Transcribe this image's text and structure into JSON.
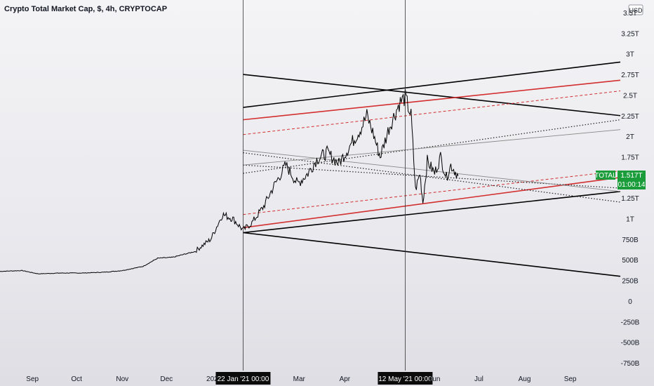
{
  "header": {
    "title": "Crypto Total Market Cap, $, 4h, CRYPTOCAP",
    "currency_button": "USD"
  },
  "axes": {
    "y_ticks": [
      "3.5T",
      "3.25T",
      "3T",
      "2.75T",
      "2.5T",
      "2.25T",
      "2T",
      "1.75T",
      "1.25T",
      "1T",
      "750B",
      "500B",
      "250B",
      "0",
      "-250B",
      "-500B",
      "-750B"
    ],
    "x_ticks": [
      "Sep",
      "Oct",
      "Nov",
      "Dec",
      "202",
      "Mar",
      "Apr",
      "Jun",
      "Jul",
      "Aug",
      "Sep"
    ],
    "vline_labels": [
      "22 Jan '21  00:00",
      "12 May '21  00:00"
    ]
  },
  "price_tag": {
    "symbol": "TOTAL",
    "value": "1.517T",
    "countdown": "01:00:14"
  },
  "colors": {
    "price": "#000000",
    "channel": "#000000",
    "red": "#d32f2f",
    "label_green": "#1b9c3b"
  },
  "chart_data": {
    "type": "line",
    "title": "Crypto Total Market Cap, $, 4h, CRYPTOCAP",
    "xlabel": "",
    "ylabel": "",
    "ylim": [
      -750000000000,
      3500000000000
    ],
    "x_range": [
      "2020-08-10",
      "2021-10-05"
    ],
    "series": [
      {
        "values": [
          [
            "2020-08-10",
            360000000000.0
          ],
          [
            "2020-08-25",
            370000000000.0
          ],
          [
            "2020-09-05",
            330000000000.0
          ],
          [
            "2020-09-20",
            340000000000.0
          ],
          [
            "2020-10-05",
            340000000000.0
          ],
          [
            "2020-10-20",
            350000000000.0
          ],
          [
            "2020-11-01",
            370000000000.0
          ],
          [
            "2020-11-15",
            420000000000.0
          ],
          [
            "2020-11-25",
            520000000000.0
          ],
          [
            "2020-12-05",
            530000000000.0
          ],
          [
            "2020-12-20",
            600000000000.0
          ],
          [
            "2020-12-31",
            750000000000.0
          ],
          [
            "2021-01-08",
            1050000000000.0
          ],
          [
            "2021-01-15",
            1000000000000.0
          ],
          [
            "2021-01-22",
            860000000000.0
          ],
          [
            "2021-01-28",
            950000000000.0
          ],
          [
            "2021-02-05",
            1150000000000.0
          ],
          [
            "2021-02-12",
            1400000000000.0
          ],
          [
            "2021-02-20",
            1650000000000.0
          ],
          [
            "2021-02-28",
            1420000000000.0
          ],
          [
            "2021-03-07",
            1550000000000.0
          ],
          [
            "2021-03-13",
            1720000000000.0
          ],
          [
            "2021-03-20",
            1800000000000.0
          ],
          [
            "2021-03-28",
            1670000000000.0
          ],
          [
            "2021-04-05",
            1900000000000.0
          ],
          [
            "2021-04-12",
            2100000000000.0
          ],
          [
            "2021-04-16",
            2250000000000.0
          ],
          [
            "2021-04-20",
            2050000000000.0
          ],
          [
            "2021-04-25",
            1750000000000.0
          ],
          [
            "2021-05-01",
            2100000000000.0
          ],
          [
            "2021-05-08",
            2400000000000.0
          ],
          [
            "2021-05-12",
            2470000000000.0
          ],
          [
            "2021-05-16",
            2250000000000.0
          ],
          [
            "2021-05-19",
            1350000000000.0
          ],
          [
            "2021-05-22",
            1550000000000.0
          ],
          [
            "2021-05-24",
            1200000000000.0
          ],
          [
            "2021-05-27",
            1700000000000.0
          ],
          [
            "2021-06-01",
            1550000000000.0
          ],
          [
            "2021-06-05",
            1750000000000.0
          ],
          [
            "2021-06-09",
            1500000000000.0
          ],
          [
            "2021-06-12",
            1650000000000.0
          ],
          [
            "2021-06-17",
            1520000000000.0
          ]
        ]
      }
    ],
    "vertical_markers": [
      "2021-01-22",
      "2021-05-12"
    ],
    "overlays": [
      {
        "style": "black",
        "from": [
          "2021-01-22",
          2750000000000.0
        ],
        "to": [
          "2021-10-05",
          2250000000000.0
        ]
      },
      {
        "style": "black",
        "from": [
          "2021-01-22",
          2350000000000.0
        ],
        "to": [
          "2021-10-05",
          2900000000000.0
        ]
      },
      {
        "style": "black",
        "from": [
          "2021-01-22",
          830000000000.0
        ],
        "to": [
          "2021-10-05",
          1330000000000.0
        ]
      },
      {
        "style": "black",
        "from": [
          "2021-01-22",
          830000000000.0
        ],
        "to": [
          "2021-10-05",
          300000000000.0
        ]
      },
      {
        "style": "red",
        "from": [
          "2021-01-22",
          2200000000000.0
        ],
        "to": [
          "2021-10-05",
          2680000000000.0
        ]
      },
      {
        "style": "red-dashed",
        "from": [
          "2021-01-22",
          2020000000000.0
        ],
        "to": [
          "2021-10-05",
          2550000000000.0
        ]
      },
      {
        "style": "red",
        "from": [
          "2021-01-22",
          890000000000.0
        ],
        "to": [
          "2021-10-05",
          1500000000000.0
        ]
      },
      {
        "style": "red-dashed",
        "from": [
          "2021-01-22",
          1050000000000.0
        ],
        "to": [
          "2021-10-05",
          1580000000000.0
        ]
      },
      {
        "style": "dotted",
        "from": [
          "2021-01-22",
          1550000000000.0
        ],
        "to": [
          "2021-10-05",
          2200000000000.0
        ]
      },
      {
        "style": "dotted",
        "from": [
          "2021-01-22",
          1800000000000.0
        ],
        "to": [
          "2021-10-05",
          1200000000000.0
        ]
      },
      {
        "style": "dotted",
        "from": [
          "2021-01-22",
          1650000000000.0
        ],
        "to": [
          "2021-10-05",
          1370000000000.0
        ]
      },
      {
        "style": "grey",
        "from": [
          "2021-01-22",
          1650000000000.0
        ],
        "to": [
          "2021-10-05",
          2080000000000.0
        ]
      },
      {
        "style": "grey",
        "from": [
          "2021-01-22",
          1830000000000.0
        ],
        "to": [
          "2021-10-05",
          1330000000000.0
        ]
      }
    ],
    "grid": false,
    "legend": "none"
  }
}
